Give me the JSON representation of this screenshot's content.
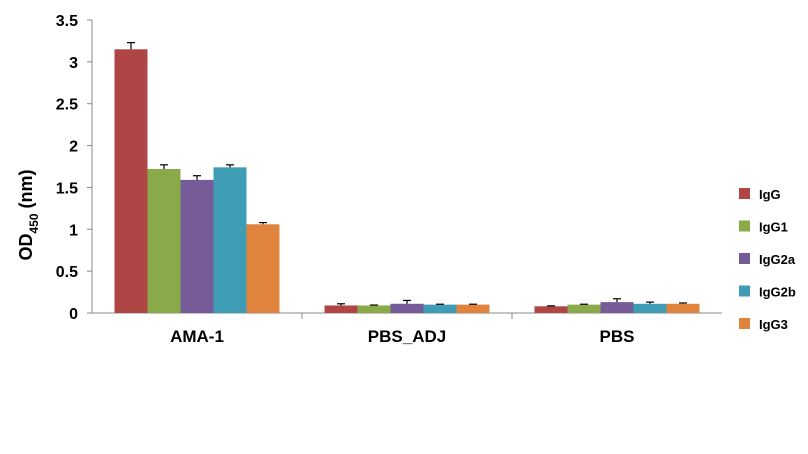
{
  "chart_data": {
    "type": "bar",
    "title": "",
    "xlabel": "",
    "ylabel": {
      "main": "OD",
      "sub": "450",
      "unit": " (nm)"
    },
    "ylim": [
      0,
      3.5
    ],
    "yticks": [
      0,
      0.5,
      1,
      1.5,
      2,
      2.5,
      3,
      3.5
    ],
    "categories": [
      "AMA-1",
      "PBS_ADJ",
      "PBS"
    ],
    "legend_position": "right",
    "grid": false,
    "error_bars": true,
    "series": [
      {
        "name": "IgG",
        "color": "#b04546",
        "values": [
          3.15,
          0.09,
          0.08
        ],
        "errors": [
          0.08,
          0.02,
          0.005
        ]
      },
      {
        "name": "IgG1",
        "color": "#8aaa4a",
        "values": [
          1.72,
          0.09,
          0.1
        ],
        "errors": [
          0.05,
          0.005,
          0.005
        ]
      },
      {
        "name": "IgG2a",
        "color": "#765b99",
        "values": [
          1.59,
          0.11,
          0.13
        ],
        "errors": [
          0.05,
          0.04,
          0.04
        ]
      },
      {
        "name": "IgG2b",
        "color": "#3e9db5",
        "values": [
          1.74,
          0.1,
          0.11
        ],
        "errors": [
          0.03,
          0.005,
          0.02
        ]
      },
      {
        "name": "IgG3",
        "color": "#e0843d",
        "values": [
          1.06,
          0.1,
          0.11
        ],
        "errors": [
          0.02,
          0.005,
          0.01
        ]
      }
    ]
  }
}
